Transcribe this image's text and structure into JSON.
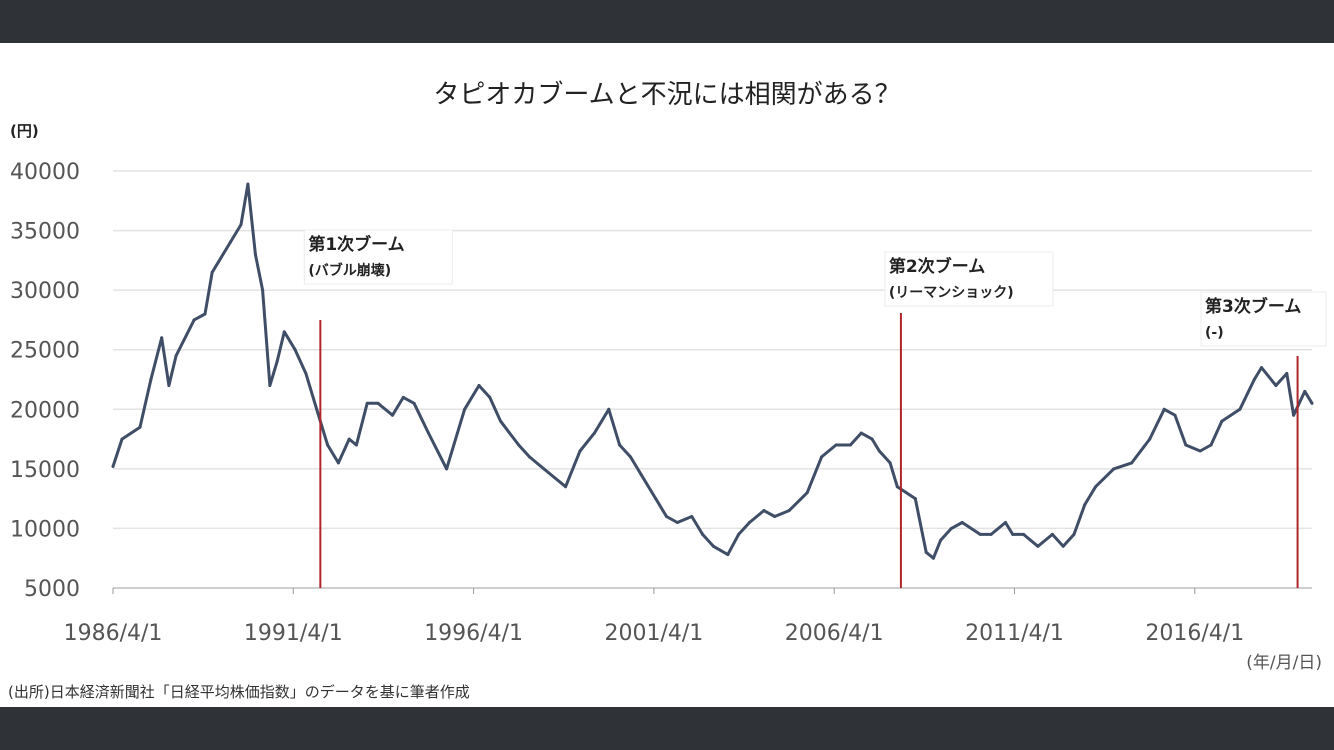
{
  "chart_data": {
    "type": "line",
    "title": "タピオカブームと不況には相関がある？",
    "y_unit_label": "(円)",
    "x_unit_label": "(年/月/日)",
    "source": "(出所)日本経済新聞社「日経平均株価指数」のデータを基に筆者作成",
    "ylim": [
      5000,
      40000
    ],
    "y_ticks": [
      5000,
      10000,
      15000,
      20000,
      25000,
      30000,
      35000,
      40000
    ],
    "x_tick_labels": [
      "1986/4/1",
      "1991/4/1",
      "1996/4/1",
      "2001/4/1",
      "2006/4/1",
      "2011/4/1",
      "2016/4/1"
    ],
    "x_range_years": [
      1986.25,
      2019.5
    ],
    "grid": true,
    "line_color": "#3f4e66",
    "series": [
      {
        "name": "",
        "x": [
          1986.25,
          1986.5,
          1987.0,
          1987.3,
          1987.6,
          1987.8,
          1988.0,
          1988.5,
          1988.8,
          1989.0,
          1989.5,
          1989.8,
          1989.99,
          1990.2,
          1990.4,
          1990.6,
          1990.8,
          1991.0,
          1991.3,
          1991.6,
          1991.9,
          1992.2,
          1992.5,
          1992.8,
          1993.0,
          1993.3,
          1993.6,
          1994.0,
          1994.3,
          1994.6,
          1995.0,
          1995.5,
          1995.8,
          1996.0,
          1996.4,
          1996.7,
          1997.0,
          1997.5,
          1997.8,
          1998.2,
          1998.8,
          1999.2,
          1999.6,
          2000.0,
          2000.3,
          2000.6,
          2000.9,
          2001.3,
          2001.6,
          2001.9,
          2002.3,
          2002.6,
          2002.9,
          2003.3,
          2003.6,
          2003.9,
          2004.3,
          2004.6,
          2005.0,
          2005.5,
          2005.9,
          2006.3,
          2006.7,
          2007.0,
          2007.3,
          2007.5,
          2007.8,
          2008.0,
          2008.5,
          2008.8,
          2009.0,
          2009.2,
          2009.5,
          2009.8,
          2010.3,
          2010.6,
          2011.0,
          2011.2,
          2011.5,
          2011.9,
          2012.3,
          2012.6,
          2012.9,
          2013.2,
          2013.5,
          2014.0,
          2014.5,
          2015.0,
          2015.4,
          2015.7,
          2016.0,
          2016.4,
          2016.7,
          2017.0,
          2017.5,
          2017.9,
          2018.1,
          2018.5,
          2018.8,
          2018.99,
          2019.3,
          2019.5
        ],
        "values": [
          15200,
          17500,
          18500,
          22500,
          26000,
          22000,
          24500,
          27500,
          28000,
          31500,
          34000,
          35500,
          38900,
          33000,
          30000,
          22000,
          24000,
          26500,
          25000,
          23000,
          20000,
          17000,
          15500,
          17500,
          17000,
          20500,
          20500,
          19500,
          21000,
          20500,
          18000,
          15000,
          18000,
          20000,
          22000,
          21000,
          19000,
          17000,
          16000,
          15000,
          13500,
          16500,
          18000,
          20000,
          17000,
          16000,
          14500,
          12500,
          11000,
          10500,
          11000,
          9500,
          8500,
          7800,
          9500,
          10500,
          11500,
          11000,
          11500,
          13000,
          16000,
          17000,
          17000,
          18000,
          17500,
          16500,
          15500,
          13500,
          12500,
          8000,
          7500,
          9000,
          10000,
          10500,
          9500,
          9500,
          10500,
          9500,
          9500,
          8500,
          9500,
          8500,
          9500,
          12000,
          13500,
          15000,
          15500,
          17500,
          20000,
          19500,
          17000,
          16500,
          17000,
          19000,
          20000,
          22500,
          23500,
          22000,
          23000,
          19500,
          21500,
          20500
        ]
      }
    ],
    "events": [
      {
        "year": 1992.0,
        "label": "第1次ブーム",
        "sub": "(バブル崩壊)"
      },
      {
        "year": 2008.1,
        "label": "第2次ブーム",
        "sub": "(リーマンショック)"
      },
      {
        "year": 2019.1,
        "label": "第3次ブーム",
        "sub": "(-)"
      }
    ],
    "event_line_color": "#b0252a"
  }
}
